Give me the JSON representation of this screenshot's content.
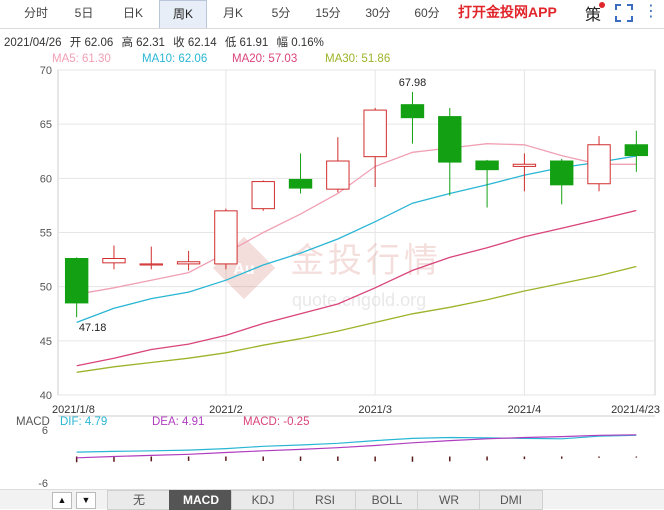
{
  "tabs": [
    "分时",
    "5日",
    "日K",
    "周K",
    "月K",
    "5分",
    "15分",
    "30分",
    "60分"
  ],
  "active_tab": "周K",
  "promo": "打开金投网APP",
  "strategy_label": "策",
  "info": {
    "date": "2021/04/26",
    "open": "开 62.06",
    "high": "高 62.31",
    "close": "收 62.14",
    "low": "低 61.91",
    "change": "幅 0.16%"
  },
  "ma_legend": [
    {
      "text": "MA5: 61.30",
      "color": "#f0a0b4"
    },
    {
      "text": "MA10: 62.06",
      "color": "#29b6d4"
    },
    {
      "text": "MA20: 57.03",
      "color": "#d9447a"
    },
    {
      "text": "MA30: 51.86",
      "color": "#9cb42a"
    }
  ],
  "macd_legend": {
    "label": "MACD",
    "dif": "DIF: 4.79",
    "dea": "DEA: 4.91",
    "macd": "MACD: -0.25",
    "dif_color": "#29b6d4",
    "dea_color": "#b03cc0",
    "macd_color": "#d9447a"
  },
  "watermark": {
    "brand": "金投行情",
    "url": "quote.cngold.org",
    "badge": "Au"
  },
  "bottom_tabs": [
    "无",
    "MACD",
    "KDJ",
    "RSI",
    "BOLL",
    "WR",
    "DMI"
  ],
  "active_bottom_tab": "MACD",
  "chart_data": {
    "type": "candlestick",
    "ylim": [
      40,
      70
    ],
    "yticks": [
      40,
      45,
      50,
      55,
      60,
      65,
      70
    ],
    "x_labels": [
      "2021/1/8",
      "2021/2",
      "2021/3",
      "2021/4",
      "2021/4/23"
    ],
    "candles": [
      {
        "o": 52.6,
        "c": 48.5,
        "h": 52.7,
        "l": 47.18
      },
      {
        "o": 52.2,
        "c": 52.6,
        "h": 53.8,
        "l": 51.6
      },
      {
        "o": 52.0,
        "c": 52.1,
        "h": 53.7,
        "l": 51.6
      },
      {
        "o": 52.1,
        "c": 52.3,
        "h": 53.3,
        "l": 51.5
      },
      {
        "o": 52.1,
        "c": 57.0,
        "h": 57.2,
        "l": 51.6
      },
      {
        "o": 57.2,
        "c": 59.7,
        "h": 59.8,
        "l": 57.0
      },
      {
        "o": 59.9,
        "c": 59.1,
        "h": 62.3,
        "l": 58.6
      },
      {
        "o": 59.0,
        "c": 61.6,
        "h": 63.8,
        "l": 58.7
      },
      {
        "o": 62.0,
        "c": 66.3,
        "h": 66.5,
        "l": 59.2
      },
      {
        "o": 66.8,
        "c": 65.6,
        "h": 67.98,
        "l": 63.2
      },
      {
        "o": 65.7,
        "c": 61.5,
        "h": 66.5,
        "l": 58.4
      },
      {
        "o": 61.6,
        "c": 60.8,
        "h": 61.7,
        "l": 57.3
      },
      {
        "o": 61.1,
        "c": 61.3,
        "h": 62.3,
        "l": 58.8
      },
      {
        "o": 61.6,
        "c": 59.4,
        "h": 61.8,
        "l": 57.6
      },
      {
        "o": 59.5,
        "c": 63.1,
        "h": 63.9,
        "l": 58.8
      },
      {
        "o": 63.1,
        "c": 62.1,
        "h": 64.4,
        "l": 60.6
      }
    ],
    "ma5": [
      49.3,
      49.9,
      50.6,
      51.3,
      53.1,
      55.0,
      56.7,
      58.6,
      61.1,
      62.4,
      62.8,
      63.2,
      63.1,
      62.1,
      61.3,
      61.3
    ],
    "ma10": [
      46.7,
      48.0,
      48.9,
      49.5,
      50.6,
      52.0,
      53.1,
      54.4,
      56.0,
      57.7,
      58.6,
      59.4,
      60.3,
      61.0,
      61.5,
      62.06
    ],
    "ma20": [
      42.7,
      43.4,
      44.2,
      44.7,
      45.5,
      46.6,
      47.5,
      48.4,
      49.9,
      51.5,
      52.7,
      53.6,
      54.6,
      55.4,
      56.2,
      57.03
    ],
    "ma30": [
      42.1,
      42.6,
      43.0,
      43.4,
      43.9,
      44.6,
      45.2,
      45.9,
      46.7,
      47.5,
      48.1,
      48.8,
      49.6,
      50.3,
      51.0,
      51.86
    ],
    "annotations": [
      {
        "text": "67.98",
        "index": 9
      },
      {
        "text": "47.18",
        "index": 0
      }
    ],
    "macd": {
      "ylim": [
        -6,
        6
      ],
      "yticks": [
        6,
        -6
      ],
      "dif": [
        1.0,
        1.15,
        1.3,
        1.45,
        1.8,
        2.3,
        2.6,
        3.0,
        3.6,
        4.1,
        4.3,
        4.2,
        4.1,
        4.0,
        4.6,
        4.79
      ],
      "dea": [
        -0.3,
        0.0,
        0.25,
        0.5,
        0.9,
        1.3,
        1.6,
        2.0,
        2.5,
        3.1,
        3.6,
        4.0,
        4.3,
        4.5,
        4.8,
        4.91
      ],
      "hist": [
        -1.3,
        -1.2,
        -1.1,
        -1.0,
        -1.0,
        -1.0,
        -1.0,
        -1.0,
        -1.1,
        -1.2,
        -1.1,
        -0.9,
        -0.6,
        -0.5,
        -0.3,
        -0.25
      ]
    }
  }
}
